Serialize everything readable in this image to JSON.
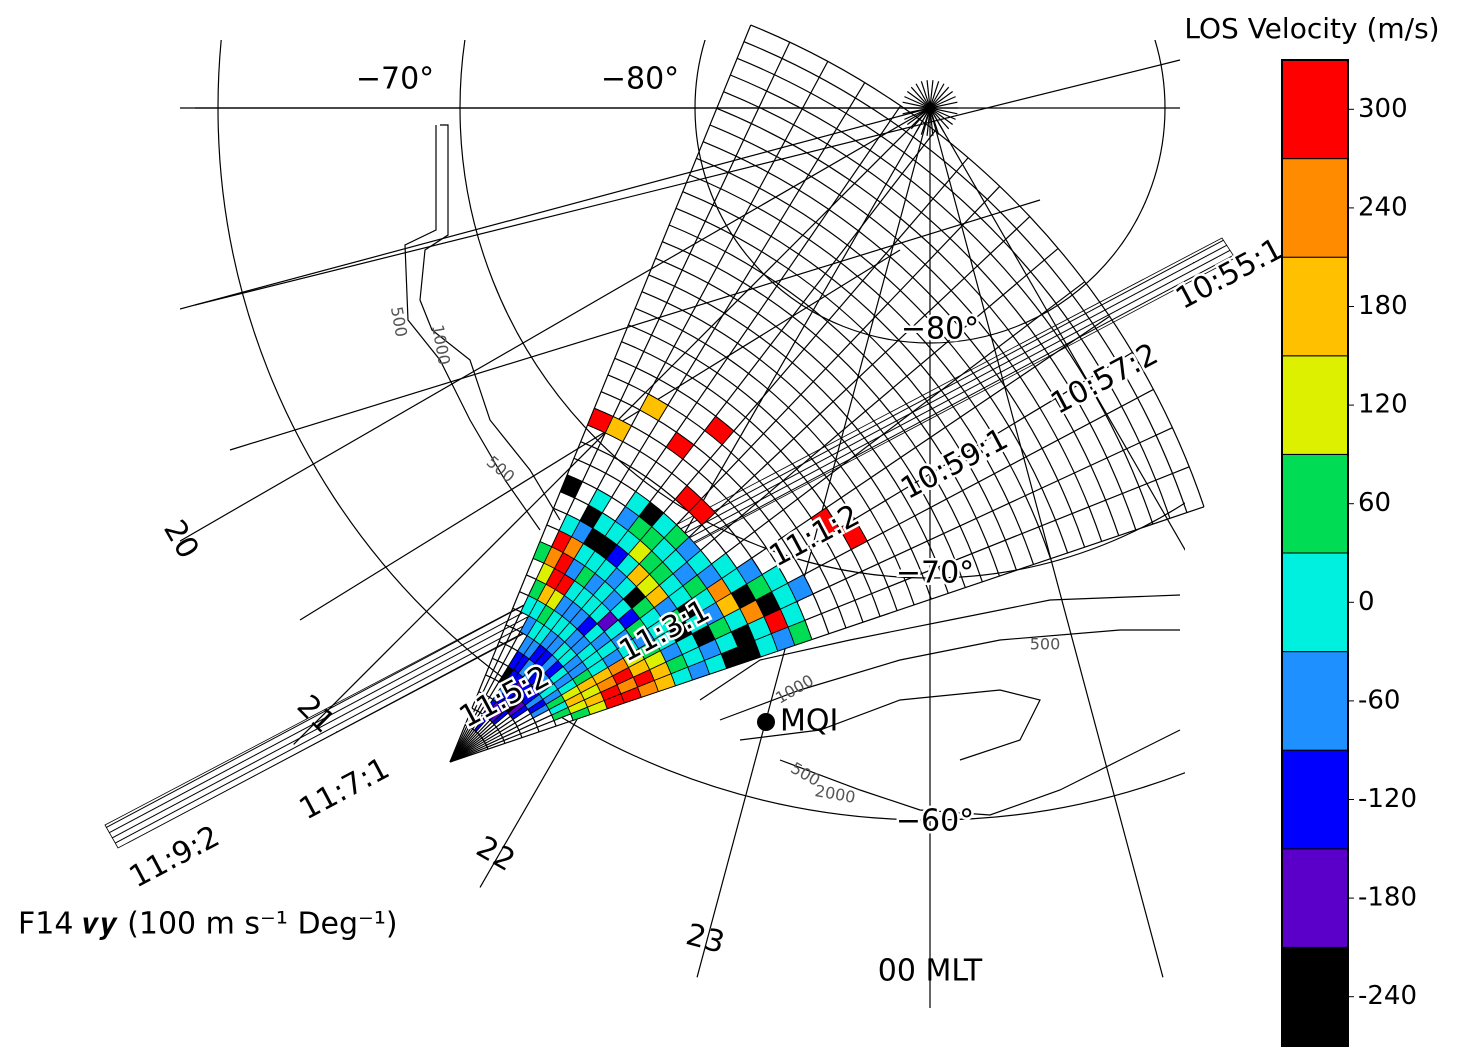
{
  "chart_data": {
    "type": "fan",
    "title": "LOS Velocity (m/s)",
    "ylim": [
      -270,
      330
    ],
    "yticks": [
      300,
      240,
      180,
      120,
      60,
      0,
      -60,
      -120,
      -180,
      -240
    ],
    "colors": [
      "#000000",
      "#5a00c8",
      "#0000ff",
      "#1e90ff",
      "#00f0e0",
      "#00dd55",
      "#ddf000",
      "#ffc000",
      "#ff8c00",
      "#ff0000"
    ],
    "latitude_labels": [
      "−70°",
      "−80°",
      "−80°",
      "−70°",
      "−60°"
    ],
    "mlt_labels": [
      "20",
      "21",
      "22",
      "23",
      "00 MLT"
    ],
    "track_labels": [
      "11:9:2",
      "11:7:1",
      "11:5:2",
      "11:3:1",
      "11:1:2",
      "10:59:1",
      "10:57:2",
      "10:55:1"
    ],
    "footnote": "F14 𝒗𝒚 (100 m s⁻¹ Deg⁻¹)",
    "station": "MQI",
    "contour_labels": [
      "500",
      "1000",
      "500",
      "500",
      "1000",
      "500",
      "2000"
    ],
    "beams": [
      [
        null,
        null,
        null,
        null,
        null,
        60,
        120,
        300,
        300,
        240,
        180,
        0,
        -60,
        0,
        -240,
        -240,
        0,
        -60,
        60,
        null,
        null,
        null,
        null,
        null
      ],
      [
        null,
        null,
        null,
        null,
        60,
        120,
        180,
        300,
        240,
        300,
        180,
        60,
        0,
        -60,
        0,
        -240,
        0,
        300,
        0,
        null,
        null,
        null,
        null,
        null
      ],
      [
        null,
        null,
        null,
        null,
        0,
        180,
        120,
        240,
        300,
        180,
        120,
        -60,
        0,
        -240,
        60,
        0,
        240,
        -240,
        0,
        -60,
        null,
        null,
        null,
        null
      ],
      [
        null,
        null,
        null,
        -60,
        60,
        120,
        180,
        180,
        240,
        120,
        60,
        0,
        -240,
        0,
        -60,
        180,
        -240,
        60,
        0,
        null,
        null,
        null,
        null,
        300
      ],
      [
        null,
        null,
        null,
        -120,
        -60,
        0,
        60,
        0,
        -60,
        0,
        -60,
        0,
        60,
        -240,
        0,
        240,
        0,
        -60,
        null,
        null,
        null,
        null,
        300,
        null
      ],
      [
        null,
        null,
        -120,
        -60,
        0,
        -60,
        -60,
        0,
        0,
        -60,
        60,
        0,
        -60,
        0,
        60,
        -60,
        0,
        null,
        null,
        null,
        null,
        null,
        null,
        null
      ],
      [
        null,
        null,
        -180,
        -120,
        -60,
        0,
        -60,
        0,
        -60,
        0,
        -120,
        60,
        180,
        0,
        -60,
        0,
        null,
        null,
        null,
        null,
        null,
        null,
        null,
        null
      ],
      [
        null,
        -120,
        -240,
        -120,
        -60,
        -120,
        0,
        -60,
        0,
        -180,
        0,
        -240,
        120,
        60,
        0,
        -60,
        null,
        null,
        null,
        null,
        null,
        null,
        null,
        null
      ],
      [
        null,
        -180,
        -120,
        -120,
        -120,
        -60,
        0,
        -60,
        -120,
        0,
        -60,
        0,
        180,
        60,
        0,
        60,
        null,
        300,
        null,
        null,
        null,
        null,
        null,
        null
      ],
      [
        null,
        -120,
        -120,
        -180,
        -60,
        -120,
        -60,
        0,
        -60,
        0,
        0,
        -60,
        0,
        120,
        60,
        0,
        null,
        300,
        null,
        null,
        null,
        null,
        null,
        null
      ],
      [
        -120,
        -180,
        -120,
        -120,
        -60,
        -120,
        -60,
        0,
        -60,
        0,
        -60,
        0,
        -120,
        0,
        60,
        -240,
        null,
        null,
        null,
        null,
        null,
        300,
        null,
        null
      ],
      [
        null,
        -120,
        -60,
        -120,
        -120,
        -60,
        0,
        0,
        -60,
        0,
        60,
        0,
        -240,
        0,
        -60,
        0,
        null,
        null,
        null,
        300,
        null,
        null,
        null,
        null
      ],
      [
        null,
        null,
        null,
        -240,
        -120,
        -60,
        0,
        60,
        120,
        300,
        -60,
        0,
        -240,
        0,
        null,
        null,
        null,
        null,
        null,
        null,
        null,
        null,
        null,
        null
      ],
      [
        null,
        null,
        null,
        null,
        null,
        null,
        -60,
        0,
        180,
        300,
        300,
        240,
        -60,
        -240,
        0,
        null,
        null,
        null,
        null,
        null,
        180,
        null,
        null,
        null
      ],
      [
        null,
        null,
        null,
        null,
        null,
        null,
        null,
        0,
        60,
        120,
        240,
        300,
        0,
        null,
        null,
        null,
        null,
        null,
        180,
        null,
        null,
        null,
        null,
        null
      ],
      [
        null,
        null,
        null,
        null,
        null,
        null,
        null,
        null,
        null,
        null,
        60,
        null,
        null,
        null,
        -240,
        null,
        null,
        null,
        300,
        null,
        null,
        null,
        null,
        null
      ]
    ]
  }
}
